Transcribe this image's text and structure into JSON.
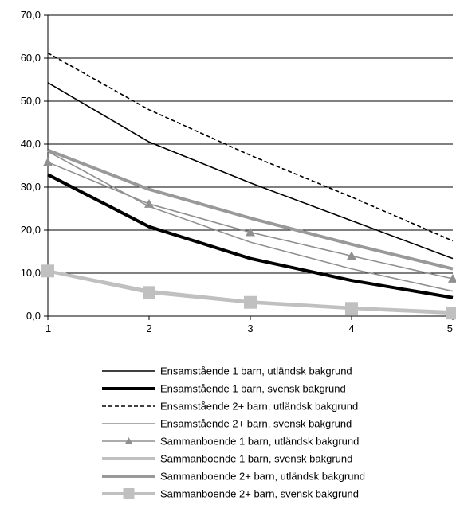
{
  "chart_data": {
    "type": "line",
    "x": [
      1,
      2,
      3,
      4,
      5
    ],
    "ylim": [
      0,
      70
    ],
    "yticks": [
      "0,0",
      "10,0",
      "20,0",
      "30,0",
      "40,0",
      "50,0",
      "60,0",
      "70,0"
    ],
    "xticks": [
      "1",
      "2",
      "3",
      "4",
      "5"
    ],
    "grid": true,
    "legend_position": "bottom",
    "series": [
      {
        "name": "Ensamstående 1 barn, utländsk bakgrund",
        "values": [
          54.3,
          40.5,
          31.0,
          22.2,
          13.4
        ],
        "color": "#000000",
        "style": "solid-thin",
        "marker": "none"
      },
      {
        "name": "Ensamstående 1 barn, svensk bakgrund",
        "values": [
          32.9,
          20.8,
          13.4,
          8.3,
          4.3
        ],
        "color": "#000000",
        "style": "solid-thick",
        "marker": "none"
      },
      {
        "name": "Ensamstående 2+ barn, utländsk bakgrund",
        "values": [
          61.2,
          48.0,
          37.4,
          27.7,
          17.5
        ],
        "color": "#000000",
        "style": "dashed",
        "marker": "none"
      },
      {
        "name": "Ensamstående 2+ barn, svensk bakgrund",
        "values": [
          38.3,
          25.5,
          17.2,
          11.0,
          5.8
        ],
        "color": "#909090",
        "style": "solid-thin",
        "marker": "none"
      },
      {
        "name": "Sammanboende 1 barn, utländsk bakgrund",
        "values": [
          35.8,
          26.1,
          19.5,
          14.0,
          8.7
        ],
        "color": "#909090",
        "style": "solid-thin",
        "marker": "triangle"
      },
      {
        "name": "Sammanboende 1 barn, svensk bakgrund",
        "values": [
          10.5,
          5.8,
          3.3,
          1.9,
          0.9
        ],
        "color": "#c0c0c0",
        "style": "solid-thick",
        "marker": "none"
      },
      {
        "name": "Sammanboende 2+ barn, utländsk bakgrund",
        "values": [
          38.6,
          29.5,
          22.8,
          16.7,
          11.0
        ],
        "color": "#999999",
        "style": "solid-thick",
        "marker": "none"
      },
      {
        "name": "Sammanboende 2+ barn, svensk bakgrund",
        "values": [
          10.5,
          5.5,
          3.2,
          1.8,
          0.7
        ],
        "color": "#c0c0c0",
        "style": "solid-thick",
        "marker": "square"
      }
    ]
  }
}
